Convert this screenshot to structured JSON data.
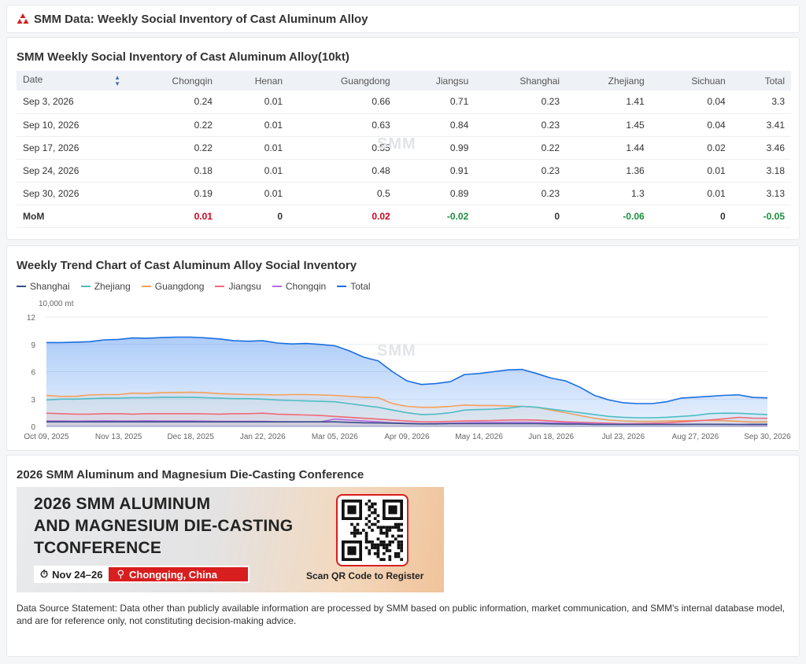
{
  "header": {
    "title": "SMM Data: Weekly Social Inventory of Cast Aluminum Alloy"
  },
  "table": {
    "title": "SMM Weekly Social Inventory of Cast Aluminum Alloy(10kt)",
    "columns": [
      "Date",
      "Chongqin",
      "Henan",
      "Guangdong",
      "Jiangsu",
      "Shanghai",
      "Zhejiang",
      "Sichuan",
      "Total"
    ],
    "rows": [
      [
        "Sep 3, 2026",
        "0.24",
        "0.01",
        "0.66",
        "0.71",
        "0.23",
        "1.41",
        "0.04",
        "3.3"
      ],
      [
        "Sep 10, 2026",
        "0.22",
        "0.01",
        "0.63",
        "0.84",
        "0.23",
        "1.45",
        "0.04",
        "3.41"
      ],
      [
        "Sep 17, 2026",
        "0.22",
        "0.01",
        "0.55",
        "0.99",
        "0.22",
        "1.44",
        "0.02",
        "3.46"
      ],
      [
        "Sep 24, 2026",
        "0.18",
        "0.01",
        "0.48",
        "0.91",
        "0.23",
        "1.36",
        "0.01",
        "3.18"
      ],
      [
        "Sep 30, 2026",
        "0.19",
        "0.01",
        "0.5",
        "0.89",
        "0.23",
        "1.3",
        "0.01",
        "3.13"
      ]
    ],
    "mom": [
      "MoM",
      "0.01",
      "0",
      "0.02",
      "-0.02",
      "0",
      "-0.06",
      "0",
      "-0.05"
    ],
    "colors": {
      "up": "#d0021b",
      "down": "#1a8f3c"
    }
  },
  "watermark": {
    "text": "SMM"
  },
  "chart_data": {
    "type": "area",
    "title": "Weekly Trend Chart of Cast Aluminum Alloy Social Inventory",
    "ylabel": "10,000 mt",
    "ylim": [
      0,
      12
    ],
    "yticks": [
      0,
      3,
      6,
      9,
      12
    ],
    "xticks": [
      "Oct 09, 2025",
      "Nov 13, 2025",
      "Dec 18, 2025",
      "Jan 22, 2026",
      "Mar 05, 2026",
      "Apr 09, 2026",
      "May 14, 2026",
      "Jun 18, 2026",
      "Jul 23, 2026",
      "Aug 27, 2026",
      "Sep 30, 2026"
    ],
    "x": [
      "Oct 09, 2025",
      "Oct 16, 2025",
      "Oct 23, 2025",
      "Oct 30, 2025",
      "Nov 06, 2025",
      "Nov 13, 2025",
      "Nov 20, 2025",
      "Nov 27, 2025",
      "Dec 04, 2025",
      "Dec 11, 2025",
      "Dec 18, 2025",
      "Dec 25, 2025",
      "Jan 01, 2026",
      "Jan 08, 2026",
      "Jan 15, 2026",
      "Jan 22, 2026",
      "Jan 29, 2026",
      "Feb 05, 2026",
      "Feb 12, 2026",
      "Feb 19, 2026",
      "Mar 05, 2026",
      "Mar 12, 2026",
      "Mar 19, 2026",
      "Mar 26, 2026",
      "Apr 02, 2026",
      "Apr 09, 2026",
      "Apr 16, 2026",
      "Apr 23, 2026",
      "Apr 30, 2026",
      "May 07, 2026",
      "May 14, 2026",
      "May 21, 2026",
      "May 28, 2026",
      "Jun 04, 2026",
      "Jun 11, 2026",
      "Jun 18, 2026",
      "Jun 25, 2026",
      "Jul 02, 2026",
      "Jul 09, 2026",
      "Jul 16, 2026",
      "Jul 23, 2026",
      "Jul 30, 2026",
      "Aug 06, 2026",
      "Aug 13, 2026",
      "Aug 20, 2026",
      "Aug 27, 2026",
      "Sep 03, 2026",
      "Sep 10, 2026",
      "Sep 17, 2026",
      "Sep 24, 2026",
      "Sep 30, 2026"
    ],
    "series": [
      {
        "name": "Total",
        "color": "#1a6fe0",
        "fill": true,
        "values": [
          9.2,
          9.2,
          9.25,
          9.3,
          9.5,
          9.55,
          9.7,
          9.68,
          9.75,
          9.8,
          9.8,
          9.72,
          9.6,
          9.4,
          9.35,
          9.4,
          9.15,
          9.05,
          9.1,
          9.0,
          8.85,
          8.3,
          7.6,
          7.2,
          6.0,
          5.0,
          4.6,
          4.7,
          4.9,
          5.7,
          5.8,
          6.0,
          6.2,
          6.25,
          5.8,
          5.3,
          5.0,
          4.3,
          3.4,
          2.9,
          2.6,
          2.5,
          2.5,
          2.7,
          3.1,
          3.2,
          3.3,
          3.41,
          3.46,
          3.18,
          3.13
        ]
      },
      {
        "name": "Guangdong",
        "color": "#f5a05a",
        "values": [
          3.4,
          3.3,
          3.3,
          3.45,
          3.5,
          3.5,
          3.65,
          3.62,
          3.7,
          3.72,
          3.75,
          3.7,
          3.6,
          3.55,
          3.5,
          3.5,
          3.45,
          3.5,
          3.5,
          3.45,
          3.4,
          3.3,
          3.2,
          3.15,
          2.5,
          2.2,
          2.1,
          2.1,
          2.2,
          2.35,
          2.3,
          2.3,
          2.25,
          2.2,
          2.1,
          1.8,
          1.5,
          1.2,
          0.9,
          0.7,
          0.6,
          0.55,
          0.55,
          0.6,
          0.62,
          0.65,
          0.66,
          0.63,
          0.55,
          0.48,
          0.5
        ]
      },
      {
        "name": "Zhejiang",
        "color": "#4fbcc4",
        "values": [
          2.9,
          3.0,
          3.0,
          3.05,
          3.1,
          3.1,
          3.15,
          3.15,
          3.2,
          3.2,
          3.2,
          3.15,
          3.1,
          3.05,
          3.05,
          3.0,
          2.9,
          2.85,
          2.8,
          2.75,
          2.7,
          2.5,
          2.3,
          2.1,
          1.8,
          1.5,
          1.3,
          1.35,
          1.5,
          1.8,
          1.85,
          1.9,
          2.0,
          2.2,
          2.1,
          1.9,
          1.7,
          1.5,
          1.3,
          1.1,
          1.0,
          0.95,
          0.95,
          1.0,
          1.1,
          1.2,
          1.41,
          1.45,
          1.44,
          1.36,
          1.3
        ]
      },
      {
        "name": "Jiangsu",
        "color": "#f06a78",
        "values": [
          1.45,
          1.4,
          1.35,
          1.35,
          1.4,
          1.4,
          1.35,
          1.4,
          1.4,
          1.4,
          1.4,
          1.38,
          1.35,
          1.4,
          1.4,
          1.45,
          1.35,
          1.3,
          1.25,
          1.2,
          1.1,
          1.0,
          0.9,
          0.8,
          0.7,
          0.6,
          0.5,
          0.5,
          0.55,
          0.6,
          0.62,
          0.65,
          0.7,
          0.72,
          0.7,
          0.6,
          0.5,
          0.45,
          0.4,
          0.35,
          0.3,
          0.32,
          0.35,
          0.4,
          0.5,
          0.6,
          0.71,
          0.84,
          0.99,
          0.91,
          0.89
        ]
      },
      {
        "name": "Chongqin",
        "color": "#b46ee0",
        "values": [
          0.6,
          0.6,
          0.58,
          0.6,
          0.62,
          0.6,
          0.6,
          0.62,
          0.6,
          0.6,
          0.6,
          0.58,
          0.55,
          0.55,
          0.55,
          0.55,
          0.52,
          0.5,
          0.5,
          0.5,
          0.8,
          0.7,
          0.6,
          0.5,
          0.4,
          0.35,
          0.3,
          0.32,
          0.35,
          0.4,
          0.42,
          0.45,
          0.45,
          0.45,
          0.42,
          0.4,
          0.38,
          0.35,
          0.3,
          0.28,
          0.25,
          0.25,
          0.25,
          0.24,
          0.24,
          0.24,
          0.24,
          0.22,
          0.22,
          0.18,
          0.19
        ]
      },
      {
        "name": "Shanghai",
        "color": "#3a4f8a",
        "values": [
          0.5,
          0.5,
          0.5,
          0.5,
          0.5,
          0.5,
          0.5,
          0.5,
          0.5,
          0.5,
          0.5,
          0.5,
          0.5,
          0.5,
          0.5,
          0.5,
          0.5,
          0.5,
          0.5,
          0.5,
          0.5,
          0.45,
          0.4,
          0.38,
          0.35,
          0.3,
          0.28,
          0.28,
          0.3,
          0.3,
          0.3,
          0.3,
          0.3,
          0.3,
          0.3,
          0.28,
          0.25,
          0.25,
          0.22,
          0.22,
          0.22,
          0.22,
          0.22,
          0.22,
          0.22,
          0.23,
          0.23,
          0.23,
          0.22,
          0.23,
          0.23
        ]
      }
    ],
    "legend": [
      "Shanghai",
      "Zhejiang",
      "Guangdong",
      "Jiangsu",
      "Chongqin",
      "Total"
    ],
    "legend_position": "top-left",
    "grid": true
  },
  "conference": {
    "title": "2026 SMM Aluminum and Magnesium Die-Casting Conference",
    "banner": {
      "line1": "2026 SMM ALUMINUM",
      "line2": "AND MAGNESIUM DIE-CASTING",
      "line3": "TCONFERENCE",
      "date": "Nov 24–26",
      "location": "Chongqing, China",
      "qr_caption": "Scan QR Code to Register"
    }
  },
  "statement": "Data Source Statement: Data other than publicly available information are processed by SMM based on public information, market communication, and SMM's internal database model, and are for reference only, not constituting decision-making advice."
}
